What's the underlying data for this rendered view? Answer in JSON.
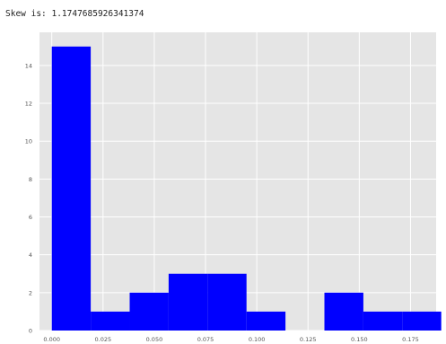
{
  "output": {
    "skew_text": "Skew is: 1.1747685926341374"
  },
  "chart_data": {
    "type": "bar",
    "title": "",
    "xlabel": "",
    "ylabel": "",
    "xlim": [
      -0.006,
      0.1875
    ],
    "ylim": [
      0,
      15.75
    ],
    "grid": true,
    "style": "ggplot",
    "colors": {
      "bar": "#0000ff",
      "plot_bg": "#e5e5e5",
      "grid": "#ffffff",
      "tick_text": "#555555"
    },
    "bins": [
      {
        "x0": 0.0,
        "x1": 0.019,
        "count": 15
      },
      {
        "x0": 0.019,
        "x1": 0.038,
        "count": 1
      },
      {
        "x0": 0.038,
        "x1": 0.057,
        "count": 2
      },
      {
        "x0": 0.057,
        "x1": 0.076,
        "count": 3
      },
      {
        "x0": 0.076,
        "x1": 0.095,
        "count": 3
      },
      {
        "x0": 0.095,
        "x1": 0.114,
        "count": 1
      },
      {
        "x0": 0.114,
        "x1": 0.133,
        "count": 0
      },
      {
        "x0": 0.133,
        "x1": 0.152,
        "count": 2
      },
      {
        "x0": 0.152,
        "x1": 0.171,
        "count": 1
      },
      {
        "x0": 0.171,
        "x1": 0.19,
        "count": 1
      }
    ],
    "x_ticks": [
      {
        "value": 0.0,
        "label": "0.000"
      },
      {
        "value": 0.025,
        "label": "0.025"
      },
      {
        "value": 0.05,
        "label": "0.050"
      },
      {
        "value": 0.075,
        "label": "0.075"
      },
      {
        "value": 0.1,
        "label": "0.100"
      },
      {
        "value": 0.125,
        "label": "0.125"
      },
      {
        "value": 0.15,
        "label": "0.150"
      },
      {
        "value": 0.175,
        "label": "0.175"
      }
    ],
    "y_ticks": [
      {
        "value": 0,
        "label": "0"
      },
      {
        "value": 2,
        "label": "2"
      },
      {
        "value": 4,
        "label": "4"
      },
      {
        "value": 6,
        "label": "6"
      },
      {
        "value": 8,
        "label": "8"
      },
      {
        "value": 10,
        "label": "10"
      },
      {
        "value": 12,
        "label": "12"
      },
      {
        "value": 14,
        "label": "14"
      }
    ]
  }
}
